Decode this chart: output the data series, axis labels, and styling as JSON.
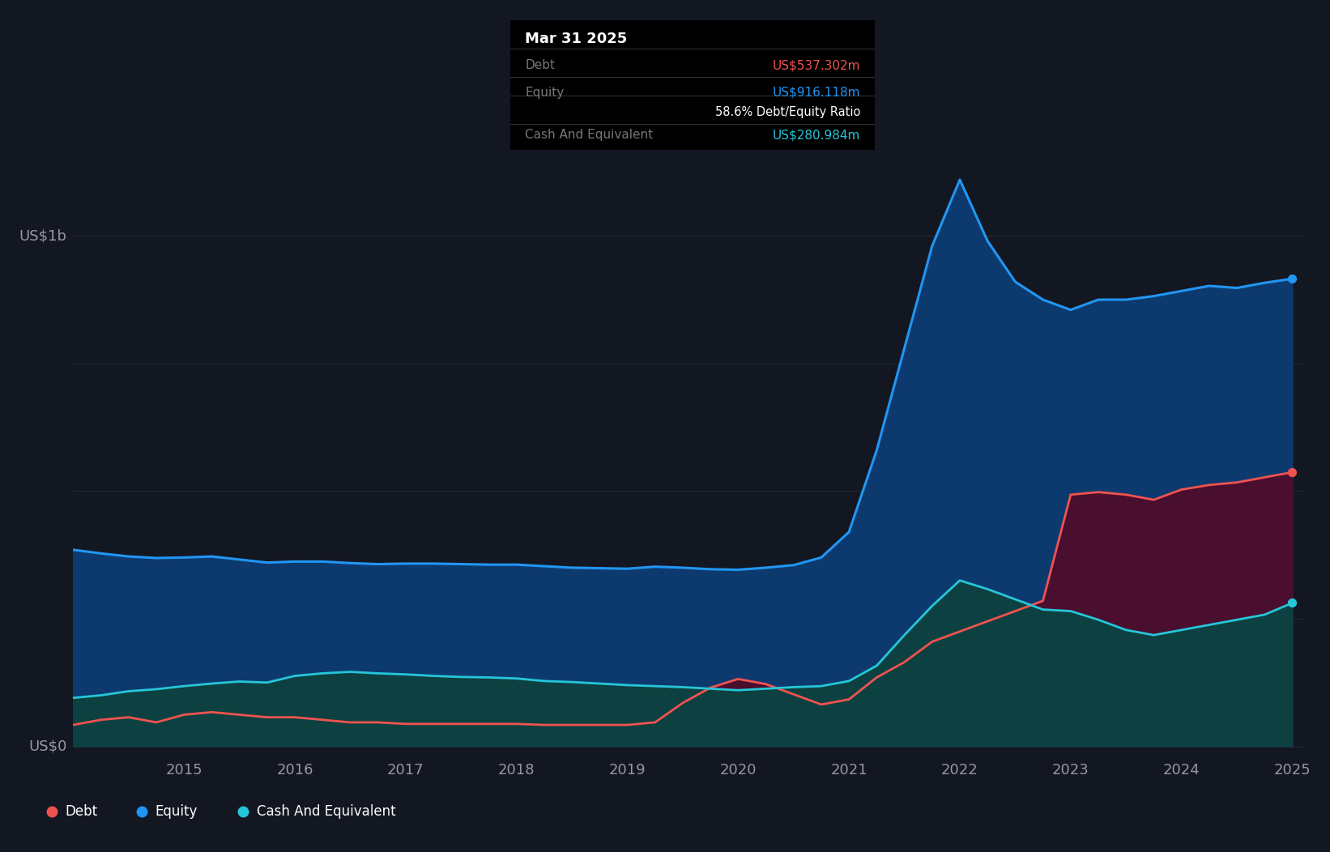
{
  "bg_color": "#131722",
  "plot_bg_color": "#131c2e",
  "grid_color": "#2a2e39",
  "axis_label_color": "#9598a1",
  "equity_line_color": "#2196f3",
  "equity_fill_color": "#0d3a6e",
  "debt_line_color": "#ef5350",
  "debt_fill_color": "#4a0e2e",
  "cash_line_color": "#26c6da",
  "cash_fill_color": "#0d4040",
  "ylabel_text": "US$1b",
  "y0_text": "US$0",
  "tooltip_bg": "#000000",
  "tooltip_title": "Mar 31 2025",
  "tooltip_debt_label": "Debt",
  "tooltip_debt_value": "US$537.302m",
  "tooltip_debt_color": "#ef5350",
  "tooltip_equity_label": "Equity",
  "tooltip_equity_value": "US$916.118m",
  "tooltip_equity_color": "#2196f3",
  "tooltip_ratio": "58.6% Debt/Equity Ratio",
  "tooltip_cash_label": "Cash And Equivalent",
  "tooltip_cash_value": "US$280.984m",
  "tooltip_cash_color": "#26c6da",
  "legend_items": [
    "Debt",
    "Equity",
    "Cash And Equivalent"
  ],
  "legend_colors": [
    "#ef5350",
    "#2196f3",
    "#26c6da"
  ],
  "years": [
    2014.0,
    2014.25,
    2014.5,
    2014.75,
    2015.0,
    2015.25,
    2015.5,
    2015.75,
    2016.0,
    2016.25,
    2016.5,
    2016.75,
    2017.0,
    2017.25,
    2017.5,
    2017.75,
    2018.0,
    2018.25,
    2018.5,
    2018.75,
    2019.0,
    2019.25,
    2019.5,
    2019.75,
    2020.0,
    2020.25,
    2020.5,
    2020.75,
    2021.0,
    2021.25,
    2021.5,
    2021.75,
    2022.0,
    2022.25,
    2022.5,
    2022.75,
    2023.0,
    2023.25,
    2023.5,
    2023.75,
    2024.0,
    2024.25,
    2024.5,
    2024.75,
    2025.0
  ],
  "equity": [
    385,
    378,
    372,
    369,
    370,
    372,
    366,
    360,
    362,
    362,
    359,
    357,
    358,
    358,
    357,
    356,
    356,
    353,
    350,
    349,
    348,
    352,
    350,
    347,
    346,
    350,
    355,
    370,
    420,
    580,
    780,
    980,
    1110,
    990,
    910,
    875,
    855,
    875,
    875,
    882,
    892,
    902,
    898,
    908,
    916
  ],
  "debt": [
    42,
    52,
    57,
    47,
    62,
    67,
    62,
    57,
    57,
    52,
    47,
    47,
    44,
    44,
    44,
    44,
    44,
    42,
    42,
    42,
    42,
    47,
    85,
    115,
    132,
    122,
    102,
    82,
    92,
    135,
    165,
    205,
    225,
    245,
    265,
    285,
    493,
    498,
    493,
    483,
    503,
    512,
    517,
    527,
    537
  ],
  "cash": [
    95,
    100,
    108,
    112,
    118,
    123,
    127,
    125,
    138,
    143,
    146,
    143,
    141,
    138,
    136,
    135,
    133,
    128,
    126,
    123,
    120,
    118,
    116,
    113,
    110,
    113,
    116,
    118,
    128,
    158,
    218,
    275,
    325,
    308,
    288,
    268,
    265,
    248,
    228,
    218,
    228,
    238,
    248,
    258,
    281
  ]
}
